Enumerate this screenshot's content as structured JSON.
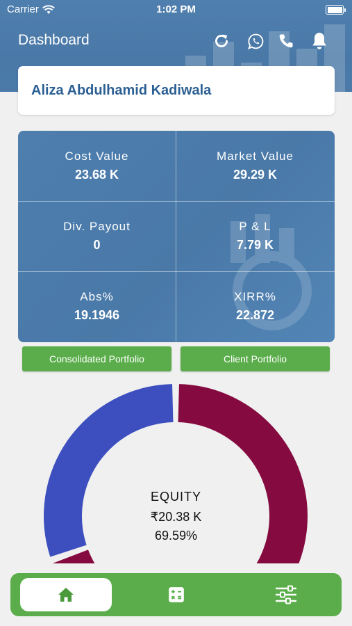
{
  "status_bar": {
    "carrier": "Carrier",
    "time": "1:02 PM"
  },
  "header": {
    "title": "Dashboard",
    "icons": [
      "refresh-icon",
      "whatsapp-icon",
      "phone-icon",
      "bell-icon"
    ]
  },
  "client": {
    "name": "Aliza Abdulhamid Kadiwala"
  },
  "stats": [
    {
      "label": "Cost Value",
      "value": "23.68 K"
    },
    {
      "label": "Market Value",
      "value": "29.29 K"
    },
    {
      "label": "Div. Payout",
      "value": "0"
    },
    {
      "label": "P & L",
      "value": "7.79 K"
    },
    {
      "label": "Abs%",
      "value": "19.1946"
    },
    {
      "label": "XIRR%",
      "value": "22.872"
    }
  ],
  "buttons": {
    "consolidated": "Consolidated Portfolio",
    "client": "Client Portfolio"
  },
  "donut": {
    "center_label": "EQUITY",
    "center_amount": "₹20.38 K",
    "center_percent": "69.59%",
    "segments": [
      {
        "name": "EQUITY",
        "percent": 69.59,
        "color": "#850a40"
      },
      {
        "name": "",
        "percent": 30.41,
        "color": "#3d4fbf"
      }
    ]
  },
  "bottom_nav": {
    "items": [
      "home-icon",
      "calculator-icon",
      "sliders-icon"
    ],
    "active": "home-icon"
  },
  "colors": {
    "primary": "#4a79a8",
    "accent_green": "#5aad4a",
    "maroon": "#850a40",
    "blue": "#3d4fbf"
  }
}
